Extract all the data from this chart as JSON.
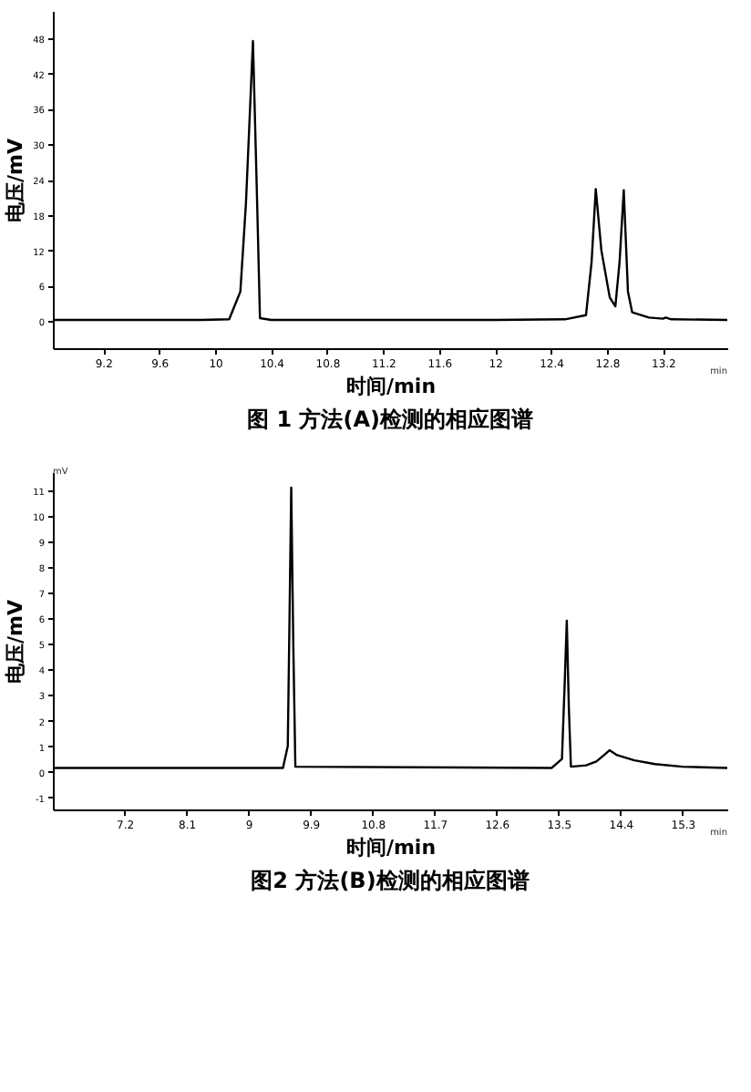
{
  "chart_data": [
    {
      "type": "line",
      "title": "图 1  方法(A)检测的相应图谱",
      "xlabel": "时间/min",
      "ylabel": "电压/mV",
      "annotations": [
        "min"
      ],
      "series": [
        {
          "color": "#000000",
          "x": [
            8.84,
            9.9,
            10.1,
            10.18,
            10.22,
            10.27,
            10.3,
            10.32,
            10.4,
            12.0,
            12.5,
            12.65,
            12.69,
            12.72,
            12.76,
            12.82,
            12.86,
            12.89,
            12.92,
            12.95,
            12.98,
            13.1,
            13.2,
            13.22,
            13.26,
            13.66
          ],
          "values": [
            0.2,
            0.2,
            0.3,
            5,
            20,
            47.5,
            20,
            0.5,
            0.2,
            0.2,
            0.3,
            1,
            10,
            22.4,
            12,
            4,
            2.5,
            10,
            22.2,
            5,
            1.5,
            0.6,
            0.4,
            0.6,
            0.3,
            0.2
          ]
        }
      ],
      "xlim": [
        8.84,
        13.66
      ],
      "xticks": [
        9.2,
        9.6,
        10,
        10.4,
        10.8,
        11.2,
        11.6,
        12,
        12.4,
        12.8,
        13.2
      ],
      "ylim": [
        -4.6,
        52.6
      ],
      "yticks": [
        0,
        6,
        12,
        18,
        24,
        30,
        36,
        42,
        48
      ],
      "grid": false,
      "marker": "none",
      "line_style": "solid"
    },
    {
      "type": "line",
      "title": "图2  方法(B)检测的相应图谱",
      "xlabel": "时间/min",
      "ylabel": "电压/mV",
      "annotations": [
        "min",
        "mV"
      ],
      "series": [
        {
          "color": "#000000",
          "x": [
            6.16,
            9.5,
            9.57,
            9.6,
            9.62,
            9.65,
            9.68,
            13.4,
            13.55,
            13.59,
            13.62,
            13.65,
            13.68,
            13.9,
            14.05,
            14.18,
            14.24,
            14.35,
            14.6,
            14.9,
            15.3,
            15.95
          ],
          "values": [
            0.15,
            0.15,
            1,
            7,
            11.1,
            5,
            0.2,
            0.15,
            0.5,
            3.5,
            5.9,
            2.5,
            0.2,
            0.25,
            0.4,
            0.7,
            0.84,
            0.65,
            0.45,
            0.3,
            0.2,
            0.15
          ]
        }
      ],
      "xlim": [
        6.16,
        15.95
      ],
      "xticks": [
        7.2,
        8.1,
        9,
        9.9,
        10.8,
        11.7,
        12.6,
        13.5,
        14.4,
        15.3
      ],
      "ylim": [
        -1.47,
        11.7
      ],
      "yticks": [
        -1,
        0,
        1,
        2,
        3,
        4,
        5,
        6,
        7,
        8,
        9,
        10,
        11
      ],
      "grid": false,
      "marker": "none",
      "line_style": "solid"
    }
  ]
}
